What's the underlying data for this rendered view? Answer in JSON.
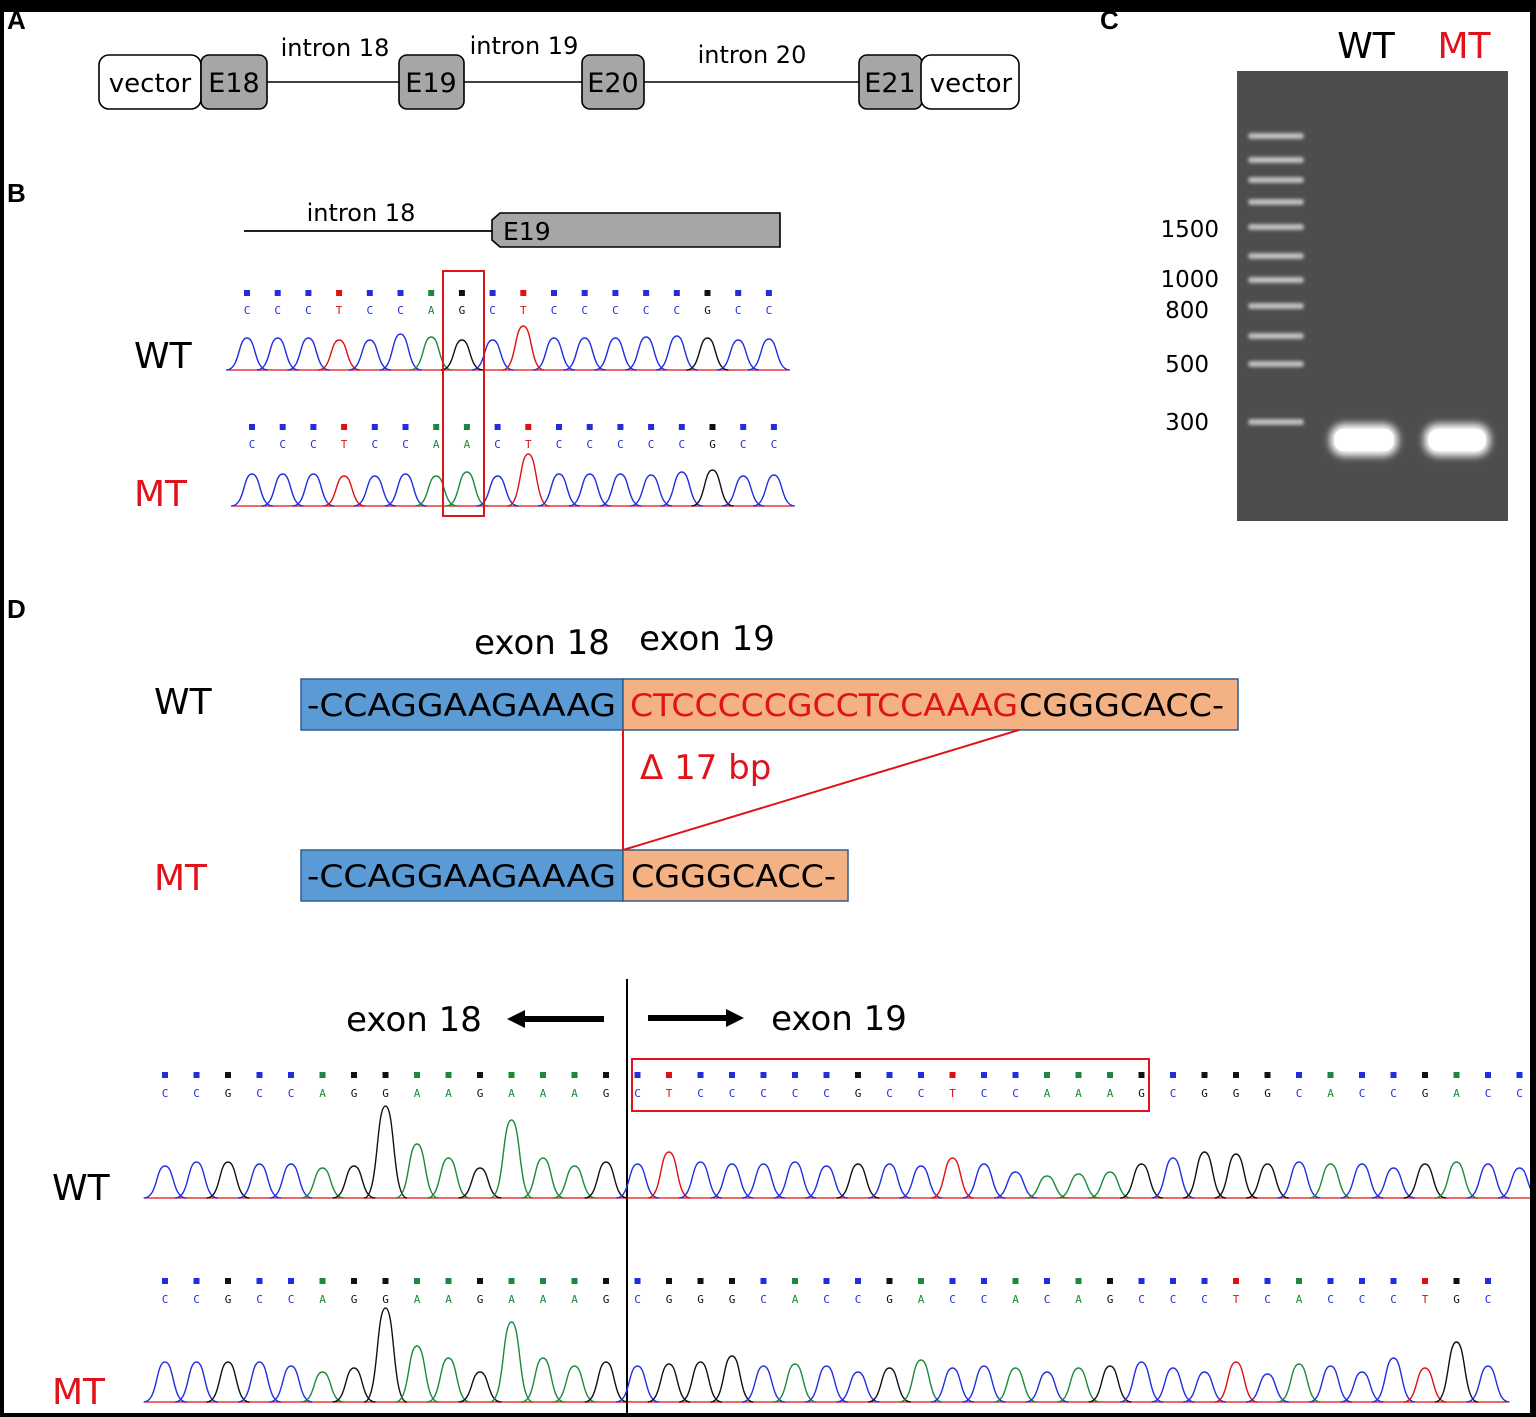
{
  "panel_labels": {
    "a": "A",
    "b": "B",
    "c": "C",
    "d": "D"
  },
  "colors": {
    "A": "#1a8a3a",
    "C": "#1f2ee0",
    "G": "#111111",
    "T": "#e01010",
    "exon_box": "#a8a5a5",
    "seq_blue": "#5b9bd5",
    "seq_orange": "#f4b183",
    "highlight_red": "#e0121a"
  },
  "panel_a": {
    "vector_left": "vector",
    "e18": "E18",
    "intron18": "intron 18",
    "e19": "E19",
    "intron19": "intron 19",
    "e20": "E20",
    "intron20": "intron 20",
    "e21": "E21",
    "vector_right": "vector"
  },
  "panel_b": {
    "intron_label": "intron 18",
    "exon_label": "E19",
    "wt_label": "WT",
    "mt_label": "MT",
    "wt_bases": [
      "C",
      "C",
      "C",
      "T",
      "C",
      "C",
      "A",
      "G",
      "C",
      "T",
      "C",
      "C",
      "C",
      "C",
      "C",
      "G",
      "C",
      "C"
    ],
    "mt_bases": [
      "C",
      "C",
      "C",
      "T",
      "C",
      "C",
      "A",
      "A",
      "C",
      "T",
      "C",
      "C",
      "C",
      "C",
      "C",
      "G",
      "C",
      "C"
    ]
  },
  "panel_c": {
    "wt_lane": "WT",
    "mt_lane": "MT",
    "ladder": [
      "1500",
      "1000",
      "800",
      "500",
      "300"
    ]
  },
  "panel_d": {
    "exon18_head": "exon 18",
    "exon19_head": "exon 19",
    "wt_label": "WT",
    "mt_label": "MT",
    "wt_exon18_seq": "-CCAGGAAGAAAG",
    "wt_deleted_seq": "CTCCCCCGCCTCCAAAG",
    "wt_rest_seq": "CGGGCACC-",
    "mt_exon18_seq": "-CCAGGAAGAAAG",
    "mt_exon19_seq": "CGGGCACC-",
    "deletion_label": "Δ 17 bp",
    "trace_exon18": "exon 18",
    "trace_exon19": "exon 19",
    "trace_wt": "WT",
    "trace_mt": "MT",
    "wt_trace_bases": [
      "C",
      "C",
      "G",
      "C",
      "C",
      "A",
      "G",
      "G",
      "A",
      "A",
      "G",
      "A",
      "A",
      "A",
      "G",
      "C",
      "T",
      "C",
      "C",
      "C",
      "C",
      "C",
      "G",
      "C",
      "C",
      "T",
      "C",
      "C",
      "A",
      "A",
      "A",
      "G",
      "C",
      "G",
      "G",
      "G",
      "C",
      "A",
      "C",
      "C",
      "G",
      "A",
      "C",
      "C"
    ],
    "mt_trace_bases": [
      "C",
      "C",
      "G",
      "C",
      "C",
      "A",
      "G",
      "G",
      "A",
      "A",
      "G",
      "A",
      "A",
      "A",
      "G",
      "C",
      "G",
      "G",
      "G",
      "C",
      "A",
      "C",
      "C",
      "G",
      "A",
      "C",
      "C",
      "A",
      "C",
      "A",
      "G",
      "C",
      "C",
      "C",
      "T",
      "C",
      "A",
      "C",
      "C",
      "C",
      "T",
      "G",
      "C"
    ]
  }
}
